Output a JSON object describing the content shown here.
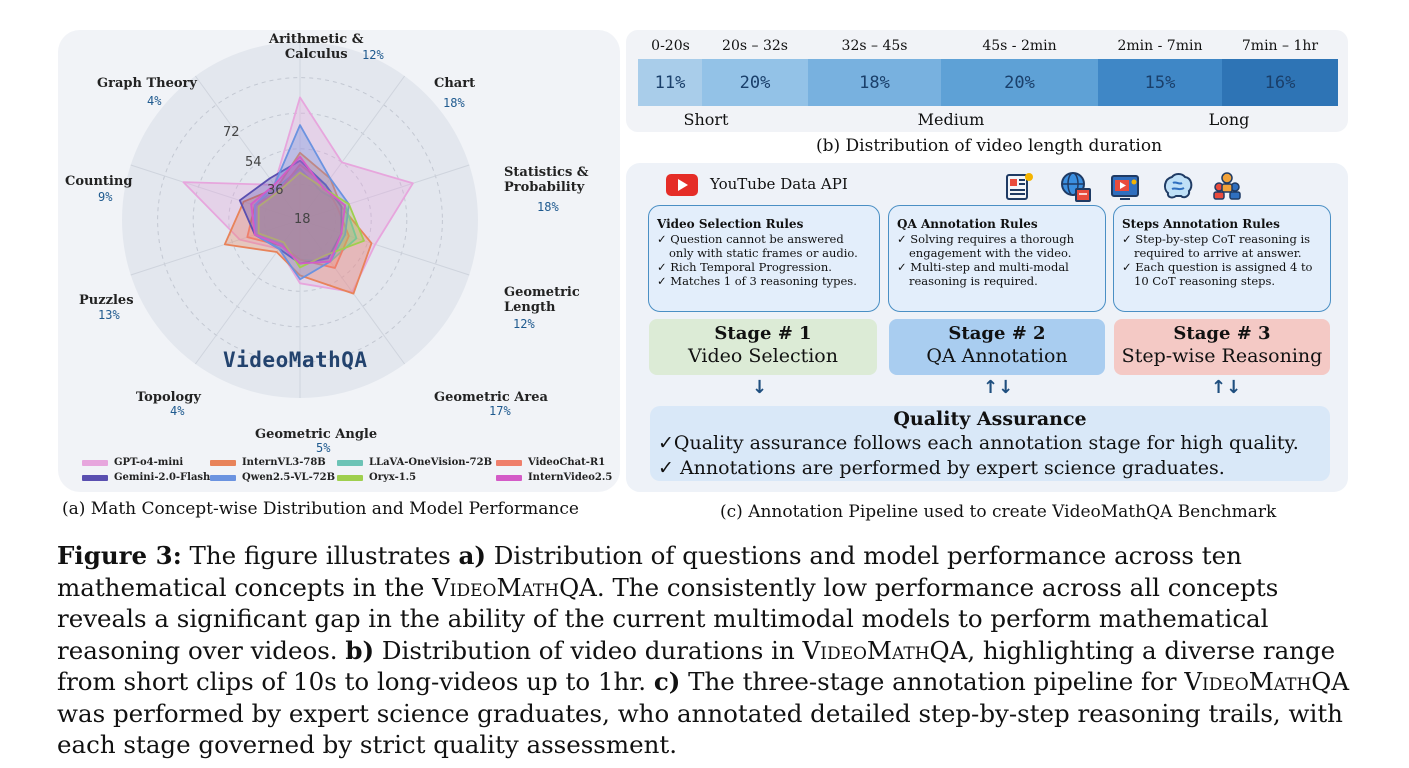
{
  "panel_a": {
    "brand": "VideoMathQA",
    "caption": "(a) Math Concept-wise Distribution and Model Performance",
    "ticks": [
      "18",
      "36",
      "54",
      "72"
    ],
    "legend": [
      {
        "name": "GPT-o4-mini",
        "color": "#e7a6dd"
      },
      {
        "name": "InternVL3-78B",
        "color": "#e8835a"
      },
      {
        "name": "LLaVA-OneVision-72B",
        "color": "#6cc3b6"
      },
      {
        "name": "VideoChat-R1",
        "color": "#ef7f6b"
      },
      {
        "name": "Gemini-2.0-Flash",
        "color": "#5a4fb0"
      },
      {
        "name": "Qwen2.5-VL-72B",
        "color": "#6b93e0"
      },
      {
        "name": "Oryx-1.5",
        "color": "#9fcf4e"
      },
      {
        "name": "InternVideo2.5",
        "color": "#d45bc7"
      }
    ]
  },
  "chart_data": {
    "type": "radar",
    "title": "VideoMathQA",
    "axis_max": 90,
    "ticks": [
      18,
      36,
      54,
      72
    ],
    "categories": [
      {
        "name": "Arithmetic &\nCalculus",
        "share": "12%"
      },
      {
        "name": "Chart",
        "share": "18%"
      },
      {
        "name": "Statistics &\nProbability",
        "share": "18%"
      },
      {
        "name": "Geometric\nLength",
        "share": "12%"
      },
      {
        "name": "Geometric Area",
        "share": "17%"
      },
      {
        "name": "Geometric Angle",
        "share": "5%"
      },
      {
        "name": "Topology",
        "share": "4%"
      },
      {
        "name": "Puzzles",
        "share": "13%"
      },
      {
        "name": "Counting",
        "share": "9%"
      },
      {
        "name": "Graph Theory",
        "share": "4%"
      }
    ],
    "series": [
      {
        "name": "GPT-o4-mini",
        "values": [
          62,
          36,
          60,
          40,
          45,
          32,
          18,
          32,
          62,
          22
        ]
      },
      {
        "name": "InternVL3-78B",
        "values": [
          34,
          26,
          22,
          38,
          46,
          28,
          20,
          40,
          30,
          20
        ]
      },
      {
        "name": "LLaVA-OneVision-72B",
        "values": [
          26,
          18,
          24,
          30,
          26,
          20,
          16,
          24,
          24,
          20
        ]
      },
      {
        "name": "VideoChat-R1",
        "values": [
          28,
          22,
          20,
          26,
          30,
          20,
          16,
          28,
          24,
          18
        ]
      },
      {
        "name": "Gemini-2.0-Flash",
        "values": [
          30,
          22,
          22,
          22,
          24,
          22,
          18,
          24,
          32,
          26
        ]
      },
      {
        "name": "Qwen2.5-VL-72B",
        "values": [
          48,
          26,
          26,
          24,
          26,
          30,
          18,
          24,
          24,
          22
        ]
      },
      {
        "name": "Oryx-1.5",
        "values": [
          24,
          20,
          26,
          34,
          22,
          24,
          14,
          22,
          22,
          18
        ]
      },
      {
        "name": "InternVideo2.5",
        "values": [
          32,
          20,
          24,
          22,
          26,
          22,
          16,
          24,
          26,
          22
        ]
      }
    ]
  },
  "panel_b": {
    "caption": "(b) Distribution of video length duration",
    "buckets": [
      {
        "range": "0-20s",
        "share": "11%",
        "color": "#a9cdea"
      },
      {
        "range": "20s – 32s",
        "share": "20%",
        "color": "#93c2e7"
      },
      {
        "range": "32s – 45s",
        "share": "18%",
        "color": "#78b1df"
      },
      {
        "range": "45s - 2min",
        "share": "20%",
        "color": "#5ea1d6"
      },
      {
        "range": "2min - 7min",
        "share": "15%",
        "color": "#3f87c6"
      },
      {
        "range": "7min – 1hr",
        "share": "16%",
        "color": "#2e74b5"
      }
    ],
    "groups": [
      "Short",
      "Medium",
      "Long"
    ]
  },
  "panel_c": {
    "caption": "(c) Annotation Pipeline used to create VideoMathQA Benchmark",
    "api_label": "YouTube Data API",
    "icons": [
      "document-icon",
      "globe-book-icon",
      "video-tutorial-icon",
      "brain-icon",
      "group-icon"
    ],
    "rules": [
      {
        "title": "Video Selection Rules",
        "lines": [
          "✓ Question cannot be answered only with static frames or audio.",
          "✓ Rich Temporal Progression.",
          "✓ Matches 1 of 3 reasoning types."
        ]
      },
      {
        "title": "QA Annotation Rules",
        "lines": [
          "✓ Solving requires a thorough engagement with the video.",
          "✓ Multi-step and multi-modal reasoning is required."
        ]
      },
      {
        "title": "Steps Annotation Rules",
        "lines": [
          "✓ Step-by-step CoT reasoning is required to arrive at answer.",
          "✓ Each question is assigned 4 to 10 CoT reasoning steps."
        ]
      }
    ],
    "stages": [
      {
        "title": "Stage # 1",
        "name": "Video Selection",
        "color": "#dcebd6",
        "arrow": "↓"
      },
      {
        "title": "Stage # 2",
        "name": "QA Annotation",
        "color": "#a9cdf0",
        "arrow": "↑↓"
      },
      {
        "title": "Stage # 3",
        "name": "Step-wise Reasoning",
        "color": "#f4c9c5",
        "arrow": "↑↓"
      }
    ],
    "qa": {
      "title": "Quality Assurance",
      "lines": [
        "✓Quality assurance follows each annotation stage for high quality.",
        "✓ Annotations are performed by expert science graduates."
      ]
    }
  },
  "figure_caption": {
    "label": "Figure 3:",
    "t1": " The figure illustrates ",
    "a": "a)",
    "t2": " Distribution of questions and model performance across ten mathematical concepts in the ",
    "name": "VideoMathQA",
    "t3": ". The consistently low performance across all concepts reveals a significant gap in the ability of the current multimodal models to perform mathematical reasoning over videos. ",
    "b": "b)",
    "t4": " Distribution of video durations in ",
    "t5": ", highlighting a diverse range from short clips of 10s to long-videos up to 1hr. ",
    "c": "c)",
    "t6": " The three-stage annotation pipeline for ",
    "t7": " was performed by expert science graduates, who annotated detailed step-by-step reasoning trails, with each stage governed by strict quality assessment."
  }
}
